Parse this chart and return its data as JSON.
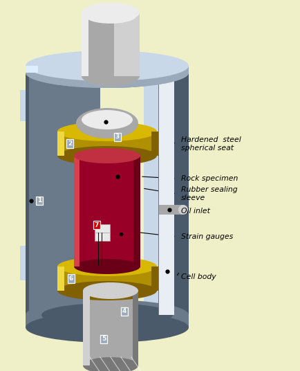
{
  "background_color": "#f0f0c8",
  "labels": {
    "hardened_steel": "Hardened  steel\nspherical seat",
    "rock_specimen": "Rock specimen",
    "rubber_sleeve": "Rubber sealing\nsleeve",
    "oil_inlet": "Oil inlet",
    "strain_gauges": "Strain gauges",
    "cell_body": "Cell body"
  },
  "colors": {
    "bg": "#f0f0c8",
    "steel_dark": "#4a5a6a",
    "steel_mid": "#6a7a8a",
    "steel_light": "#9aaabb",
    "steel_vlight": "#c8d8e8",
    "steel_highlight": "#ddeeff",
    "plunger_dark": "#787878",
    "plunger_mid": "#a8a8a8",
    "plunger_light": "#d0d0d0",
    "plunger_vlight": "#ececec",
    "gold_dark": "#806000",
    "gold_mid": "#b09000",
    "gold_light": "#d8b800",
    "gold_vlight": "#f0d840",
    "rock_dark": "#6a0018",
    "rock_mid": "#980028",
    "rock_light": "#c03040",
    "rock_vlight": "#d84050",
    "black": "#000000",
    "white": "#ffffff",
    "cut_face": "#e8eef4",
    "inner_wall": "#c0ccd8"
  }
}
